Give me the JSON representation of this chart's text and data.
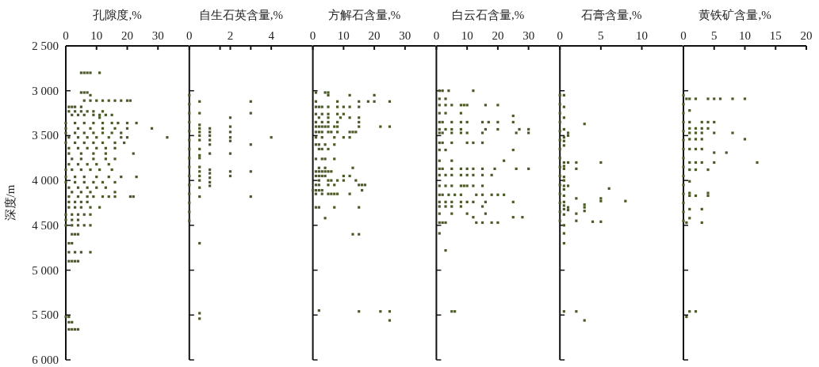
{
  "chart_data": [
    {
      "type": "scatter",
      "xlabel": "孔隙度,%",
      "ylabel": "深度/m",
      "color": "#4b5a26",
      "marker": "square",
      "xlim": [
        0,
        40
      ],
      "xticks": [
        0,
        10,
        20,
        30
      ],
      "ylim": [
        6000,
        2500
      ],
      "yticks": [
        {
          "value": 2500,
          "label": "2 500"
        },
        {
          "value": 3000,
          "label": "3 000"
        },
        {
          "value": 3500,
          "label": "3 500"
        },
        {
          "value": 4000,
          "label": "4 000"
        },
        {
          "value": 4500,
          "label": "4 500"
        },
        {
          "value": 5000,
          "label": "5 000"
        },
        {
          "value": 5500,
          "label": "5 500"
        },
        {
          "value": 6000,
          "label": "6 000"
        }
      ],
      "x": [
        5,
        6,
        7,
        8,
        11,
        5,
        6,
        7,
        8,
        6,
        8,
        10,
        12,
        14,
        16,
        18,
        20,
        21,
        1,
        2,
        3,
        5,
        1,
        3,
        5,
        7,
        9,
        12,
        2,
        4,
        6,
        9,
        11,
        13,
        15,
        11,
        0,
        3,
        6,
        9,
        12,
        15,
        17,
        20,
        23,
        0,
        4,
        8,
        12,
        16,
        20,
        28,
        0,
        3,
        6,
        9,
        12,
        15,
        18,
        1,
        4,
        7,
        10,
        14,
        18,
        20,
        33,
        0,
        3,
        6,
        9,
        12,
        16,
        19,
        1,
        4,
        7,
        10,
        13,
        16,
        1,
        5,
        9,
        13,
        22,
        2,
        5,
        9,
        13,
        16,
        1,
        4,
        7,
        10,
        14,
        0,
        2,
        5,
        8,
        11,
        15,
        0,
        3,
        6,
        10,
        14,
        18,
        23,
        0,
        3,
        6,
        9,
        12,
        16,
        1,
        4,
        7,
        10,
        13,
        2,
        5,
        8,
        16,
        1,
        4,
        7,
        9,
        12,
        14,
        16,
        21,
        22,
        1,
        3,
        5,
        7,
        1,
        3,
        5,
        8,
        11,
        0,
        2,
        4,
        6,
        8,
        0,
        2,
        4,
        0,
        2,
        4,
        6,
        8,
        2,
        3,
        4,
        1,
        2,
        1,
        3,
        5,
        8,
        1,
        2,
        3,
        4,
        0,
        1,
        1,
        2,
        1,
        2,
        3,
        4
      ],
      "values": [
        2800,
        2800,
        2800,
        2800,
        2800,
        3020,
        3020,
        3020,
        3050,
        3110,
        3110,
        3110,
        3110,
        3110,
        3110,
        3110,
        3110,
        3110,
        3180,
        3180,
        3180,
        3180,
        3230,
        3230,
        3230,
        3230,
        3230,
        3230,
        3270,
        3270,
        3270,
        3270,
        3270,
        3270,
        3270,
        3300,
        3360,
        3360,
        3360,
        3360,
        3360,
        3360,
        3360,
        3360,
        3360,
        3420,
        3420,
        3420,
        3420,
        3420,
        3420,
        3420,
        3470,
        3470,
        3470,
        3470,
        3470,
        3470,
        3470,
        3520,
        3520,
        3520,
        3520,
        3520,
        3520,
        3520,
        3520,
        3580,
        3580,
        3580,
        3580,
        3580,
        3580,
        3580,
        3640,
        3640,
        3640,
        3640,
        3640,
        3640,
        3700,
        3700,
        3700,
        3700,
        3700,
        3760,
        3760,
        3760,
        3760,
        3760,
        3820,
        3820,
        3820,
        3820,
        3820,
        3880,
        3880,
        3880,
        3880,
        3880,
        3880,
        3960,
        3960,
        3960,
        3960,
        3960,
        3960,
        3960,
        4020,
        4020,
        4020,
        4020,
        4020,
        4020,
        4080,
        4080,
        4080,
        4080,
        4080,
        4130,
        4130,
        4130,
        4130,
        4180,
        4180,
        4180,
        4180,
        4180,
        4180,
        4180,
        4180,
        4180,
        4240,
        4240,
        4240,
        4240,
        4300,
        4300,
        4300,
        4300,
        4300,
        4380,
        4380,
        4380,
        4380,
        4380,
        4440,
        4440,
        4440,
        4500,
        4500,
        4500,
        4500,
        4500,
        4600,
        4600,
        4600,
        4700,
        4700,
        4800,
        4800,
        4800,
        4800,
        4900,
        4900,
        4900,
        4900,
        5520,
        5520,
        5580,
        5580,
        5660,
        5660,
        5660,
        5660
      ]
    },
    {
      "type": "scatter",
      "xlabel": "自生石英含量,%",
      "color": "#4b5a26",
      "marker": "square",
      "tick_labels": "x",
      "xlim": [
        0,
        6
      ],
      "xticks": [
        0,
        {
          "value": 1.5,
          "label": null
        },
        2,
        {
          "value": 3,
          "label": null
        },
        4
      ],
      "ylim": [
        6000,
        2500
      ],
      "yticks": [
        {
          "value": 2500,
          "label": null
        },
        {
          "value": 3000,
          "label": null
        },
        {
          "value": 3500,
          "label": null
        },
        {
          "value": 4000,
          "label": null
        },
        {
          "value": 4500,
          "label": null
        },
        {
          "value": 5000,
          "label": null
        },
        {
          "value": 5500,
          "label": null
        },
        {
          "value": 6000,
          "label": null
        }
      ],
      "x": [
        0,
        0,
        0,
        0,
        0,
        0,
        0,
        0,
        0,
        0,
        0,
        0,
        0,
        0,
        0,
        0.5,
        0.5,
        0.5,
        0.5,
        0.5,
        0.5,
        0.5,
        0.5,
        0.5,
        0.5,
        0.5,
        0.5,
        0.5,
        0.5,
        0.5,
        0.5,
        0.5,
        0.5,
        0.5,
        1,
        1,
        1,
        1,
        1,
        1,
        1,
        1,
        1,
        1,
        1,
        2,
        2,
        2,
        2,
        2,
        2,
        2,
        2,
        3,
        3,
        3,
        3,
        3,
        4
      ],
      "values": [
        3050,
        3150,
        3250,
        3350,
        3450,
        3550,
        3650,
        3750,
        3850,
        3950,
        4050,
        4150,
        4250,
        4350,
        4450,
        3120,
        3250,
        3380,
        3420,
        3460,
        3500,
        3550,
        3650,
        3720,
        3750,
        3850,
        3900,
        3950,
        4000,
        4080,
        4180,
        4700,
        5480,
        5540,
        3420,
        3460,
        3500,
        3550,
        3600,
        3700,
        3880,
        3920,
        3970,
        4020,
        4060,
        3300,
        3400,
        3460,
        3520,
        3560,
        3700,
        3900,
        3950,
        3120,
        3250,
        3600,
        3900,
        4180,
        3520
      ]
    },
    {
      "type": "scatter",
      "xlabel": "方解石含量,%",
      "color": "#4b5a26",
      "marker": "square",
      "tick_labels": "x",
      "xlim": [
        0,
        40
      ],
      "xticks": [
        0,
        10,
        20,
        30
      ],
      "ylim": [
        6000,
        2500
      ],
      "yticks": [
        {
          "value": 2500,
          "label": null
        },
        {
          "value": 3000,
          "label": null
        },
        {
          "value": 3500,
          "label": null
        },
        {
          "value": 4000,
          "label": null
        },
        {
          "value": 4500,
          "label": null
        },
        {
          "value": 5000,
          "label": null
        },
        {
          "value": 5500,
          "label": null
        },
        {
          "value": 6000,
          "label": null
        }
      ],
      "x": [
        1,
        4,
        5,
        5,
        12,
        20,
        1,
        8,
        15,
        18,
        20,
        25,
        1,
        2,
        3,
        5,
        8,
        10,
        12,
        15,
        1,
        3,
        5,
        8,
        10,
        2,
        5,
        9,
        12,
        15,
        1,
        3,
        5,
        8,
        15,
        1,
        2,
        3,
        4,
        5,
        7,
        8,
        15,
        22,
        25,
        1,
        2,
        3,
        5,
        6,
        8,
        12,
        13,
        14,
        1,
        3,
        7,
        10,
        12,
        1,
        2,
        4,
        7,
        2,
        3,
        5,
        1,
        3,
        4,
        7,
        2,
        4,
        13,
        1,
        2,
        3,
        4,
        5,
        6,
        1,
        2,
        3,
        4,
        10,
        12,
        2,
        5,
        6,
        8,
        10,
        14,
        1,
        2,
        5,
        7,
        15,
        16,
        17,
        0,
        1,
        2,
        3,
        16,
        1,
        3,
        5,
        6,
        7,
        8,
        12,
        1,
        2,
        7,
        15,
        4,
        13,
        15,
        2,
        15,
        22,
        25,
        25
      ],
      "values": [
        3020,
        3020,
        3020,
        3050,
        3050,
        3050,
        3120,
        3120,
        3120,
        3120,
        3120,
        3120,
        3180,
        3180,
        3180,
        3180,
        3180,
        3180,
        3180,
        3180,
        3260,
        3260,
        3260,
        3260,
        3260,
        3300,
        3300,
        3300,
        3300,
        3300,
        3350,
        3350,
        3350,
        3350,
        3350,
        3400,
        3400,
        3400,
        3400,
        3400,
        3400,
        3400,
        3400,
        3400,
        3400,
        3460,
        3460,
        3460,
        3460,
        3460,
        3460,
        3460,
        3460,
        3460,
        3520,
        3520,
        3520,
        3520,
        3520,
        3600,
        3600,
        3600,
        3600,
        3650,
        3650,
        3650,
        3760,
        3760,
        3760,
        3760,
        3860,
        3860,
        3860,
        3900,
        3900,
        3900,
        3900,
        3900,
        3900,
        3950,
        3950,
        3950,
        3950,
        3950,
        3950,
        4000,
        4000,
        4000,
        4000,
        4000,
        4000,
        4050,
        4050,
        4050,
        4050,
        4050,
        4050,
        4050,
        4110,
        4110,
        4110,
        4110,
        4110,
        4150,
        4150,
        4150,
        4150,
        4150,
        4150,
        4150,
        4300,
        4300,
        4300,
        4300,
        4420,
        4600,
        4600,
        5450,
        5460,
        5460,
        5460,
        5560
      ]
    },
    {
      "type": "scatter",
      "xlabel": "白云石含量,%",
      "color": "#4b5a26",
      "marker": "square",
      "tick_labels": "x",
      "xlim": [
        0,
        40
      ],
      "xticks": [
        0,
        10,
        20,
        30
      ],
      "ylim": [
        6000,
        2500
      ],
      "yticks": [
        {
          "value": 2500,
          "label": null
        },
        {
          "value": 3000,
          "label": null
        },
        {
          "value": 3500,
          "label": null
        },
        {
          "value": 4000,
          "label": null
        },
        {
          "value": 4500,
          "label": null
        },
        {
          "value": 5000,
          "label": null
        },
        {
          "value": 5500,
          "label": null
        },
        {
          "value": 6000,
          "label": null
        }
      ],
      "x": [
        1,
        2,
        4,
        12,
        1,
        3,
        1,
        3,
        5,
        8,
        9,
        10,
        16,
        20,
        1,
        3,
        8,
        25,
        1,
        2,
        5,
        8,
        10,
        15,
        17,
        20,
        25,
        1,
        3,
        5,
        8,
        16,
        20,
        27,
        30,
        1,
        2,
        5,
        8,
        10,
        15,
        26,
        30,
        1,
        2,
        5,
        10,
        12,
        15,
        1,
        3,
        25,
        1,
        5,
        22,
        1,
        2,
        5,
        8,
        10,
        12,
        15,
        19,
        26,
        30,
        1,
        3,
        5,
        8,
        10,
        12,
        15,
        18,
        1,
        3,
        5,
        8,
        9,
        10,
        12,
        15,
        1,
        2,
        4,
        6,
        8,
        13,
        15,
        18,
        20,
        22,
        1,
        3,
        5,
        8,
        10,
        12,
        16,
        25,
        1,
        3,
        5,
        8,
        15,
        1,
        5,
        10,
        16,
        12,
        25,
        28,
        1,
        2,
        3,
        13,
        15,
        18,
        20,
        1,
        3,
        5,
        6
      ],
      "values": [
        3000,
        3000,
        3000,
        3000,
        3090,
        3090,
        3160,
        3160,
        3160,
        3160,
        3160,
        3160,
        3160,
        3160,
        3250,
        3250,
        3250,
        3280,
        3350,
        3350,
        3350,
        3350,
        3350,
        3350,
        3350,
        3350,
        3350,
        3430,
        3430,
        3430,
        3430,
        3430,
        3430,
        3430,
        3430,
        3470,
        3470,
        3470,
        3470,
        3470,
        3470,
        3470,
        3470,
        3580,
        3580,
        3580,
        3580,
        3580,
        3580,
        3660,
        3660,
        3660,
        3780,
        3780,
        3780,
        3870,
        3870,
        3870,
        3870,
        3870,
        3870,
        3870,
        3870,
        3870,
        3870,
        3940,
        3940,
        3940,
        3940,
        3940,
        3940,
        3940,
        3940,
        4060,
        4060,
        4060,
        4060,
        4060,
        4060,
        4060,
        4060,
        4160,
        4160,
        4160,
        4160,
        4160,
        4160,
        4160,
        4160,
        4160,
        4160,
        4240,
        4240,
        4240,
        4240,
        4240,
        4240,
        4240,
        4240,
        4290,
        4290,
        4290,
        4290,
        4290,
        4370,
        4370,
        4370,
        4370,
        4410,
        4410,
        4410,
        4470,
        4470,
        4470,
        4470,
        4470,
        4470,
        4470,
        4590,
        4780,
        5460,
        5460
      ]
    },
    {
      "type": "scatter",
      "xlabel": "石膏含量,%",
      "color": "#4b5a26",
      "marker": "square",
      "tick_labels": "x",
      "xlim": [
        0,
        15
      ],
      "xticks": [
        0,
        5,
        10
      ],
      "ylim": [
        6000,
        2500
      ],
      "yticks": [
        {
          "value": 2500,
          "label": null
        },
        {
          "value": 3000,
          "label": null
        },
        {
          "value": 3500,
          "label": null
        },
        {
          "value": 4000,
          "label": null
        },
        {
          "value": 4500,
          "label": null
        },
        {
          "value": 5000,
          "label": null
        },
        {
          "value": 5500,
          "label": null
        },
        {
          "value": 6000,
          "label": null
        }
      ],
      "x": [
        0,
        0,
        0,
        0,
        0,
        0,
        0,
        0,
        0,
        0,
        0,
        0,
        0,
        0,
        0,
        0.5,
        0.5,
        0.5,
        0.5,
        0.5,
        0.5,
        0.5,
        0.5,
        0.5,
        0.5,
        0.5,
        0.5,
        0.5,
        0.5,
        0.5,
        0.5,
        0.5,
        0.5,
        0.5,
        0.5,
        0.5,
        0.5,
        0.5,
        1,
        1,
        1,
        1,
        1,
        1,
        2,
        2,
        2,
        2,
        2,
        2,
        3,
        3,
        3,
        3,
        3,
        4,
        5,
        5,
        5,
        5,
        6,
        8
      ],
      "values": [
        3050,
        3150,
        3250,
        3350,
        3450,
        3550,
        3650,
        3750,
        3850,
        3950,
        4050,
        4150,
        4250,
        4350,
        4450,
        3050,
        3180,
        3300,
        3430,
        3520,
        3560,
        3610,
        3800,
        3840,
        3870,
        3960,
        4000,
        4060,
        4100,
        4170,
        4240,
        4280,
        4320,
        4380,
        4500,
        4590,
        4700,
        5460,
        3470,
        3500,
        3800,
        4060,
        4300,
        4330,
        3800,
        3870,
        4200,
        4370,
        4450,
        5460,
        3370,
        4270,
        4300,
        4340,
        5560,
        4460,
        3800,
        4200,
        4230,
        4460,
        4090,
        4230
      ]
    },
    {
      "type": "scatter",
      "xlabel": "黄铁矿含量,%",
      "color": "#4b5a26",
      "marker": "square",
      "tick_labels": "x",
      "xlim": [
        0,
        20
      ],
      "xticks": [
        0,
        5,
        10,
        15,
        20
      ],
      "ylim": [
        6000,
        2500
      ],
      "yticks": [
        {
          "value": 2500,
          "label": null
        },
        {
          "value": 3000,
          "label": null
        },
        {
          "value": 3500,
          "label": null
        },
        {
          "value": 4000,
          "label": null
        },
        {
          "value": 4500,
          "label": null
        },
        {
          "value": 5000,
          "label": null
        },
        {
          "value": 5500,
          "label": null
        },
        {
          "value": 6000,
          "label": null
        }
      ],
      "x": [
        0,
        0,
        0,
        0,
        0,
        0,
        0,
        0,
        0,
        0,
        0,
        0,
        0,
        0,
        0,
        0.5,
        1,
        2,
        4,
        5,
        6,
        8,
        10,
        1,
        1,
        3,
        4,
        5,
        1,
        2,
        3,
        4,
        1,
        2,
        3,
        5,
        8,
        1,
        2,
        3,
        10,
        1,
        2,
        3,
        5,
        7,
        1,
        2,
        3,
        5,
        12,
        1,
        2,
        4,
        1,
        1,
        4,
        1,
        2,
        4,
        1,
        3,
        1,
        0.5,
        3,
        1,
        2,
        0.5
      ],
      "values": [
        3050,
        3150,
        3250,
        3350,
        3450,
        3550,
        3650,
        3750,
        3850,
        3950,
        4050,
        4150,
        4250,
        4350,
        4450,
        3090,
        3090,
        3090,
        3090,
        3090,
        3090,
        3090,
        3090,
        3220,
        3350,
        3350,
        3350,
        3350,
        3420,
        3420,
        3420,
        3420,
        3470,
        3470,
        3470,
        3470,
        3470,
        3540,
        3540,
        3540,
        3540,
        3650,
        3650,
        3650,
        3690,
        3690,
        3800,
        3800,
        3800,
        3800,
        3800,
        3880,
        3880,
        3880,
        4010,
        4140,
        4140,
        4170,
        4170,
        4170,
        4320,
        4320,
        4420,
        4470,
        4470,
        5460,
        5460,
        5520
      ]
    }
  ]
}
